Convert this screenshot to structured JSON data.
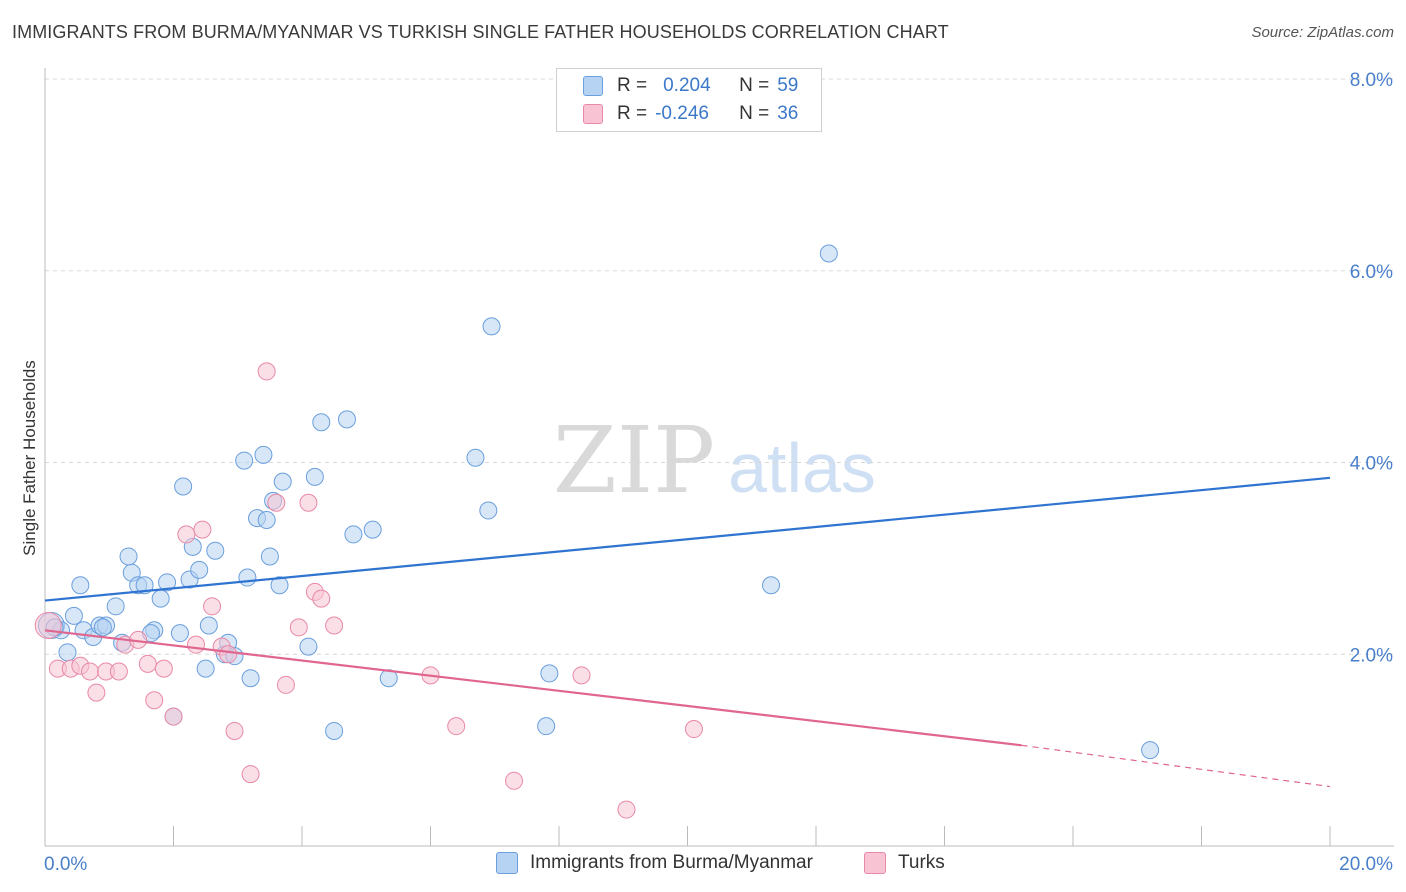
{
  "title": "IMMIGRANTS FROM BURMA/MYANMAR VS TURKISH SINGLE FATHER HOUSEHOLDS CORRELATION CHART",
  "source": "Source: ZipAtlas.com",
  "watermark": {
    "zip": "ZIP",
    "atlas": "atlas"
  },
  "legend": {
    "r_label": "R =",
    "n_label": "N =",
    "series": [
      {
        "r": "0.204",
        "n": "59"
      },
      {
        "r": "-0.246",
        "n": "36"
      }
    ]
  },
  "bottom_legend": [
    "Immigrants from Burma/Myanmar",
    "Turks"
  ],
  "colors": {
    "blue_fill": "#b7d3f3",
    "blue_edge": "#6a9fdc",
    "blue_line": "#2f74d0",
    "pink_fill": "#f8c4d4",
    "pink_edge": "#e889a7",
    "pink_line": "#e0668f",
    "tick_label": "#4a80c9",
    "grid": "#d8d8d8"
  },
  "chart_data": {
    "type": "scatter",
    "title": "IMMIGRANTS FROM BURMA/MYANMAR VS TURKISH SINGLE FATHER HOUSEHOLDS CORRELATION CHART",
    "xlabel": "",
    "ylabel": "Single Father Households",
    "xlim": [
      0,
      20
    ],
    "ylim": [
      0,
      8.0
    ],
    "x_tick_labels": [
      {
        "value": 0,
        "label": "0.0%"
      },
      {
        "value": 20,
        "label": "20.0%"
      }
    ],
    "y_tick_labels": [
      {
        "value": 2,
        "label": "2.0%"
      },
      {
        "value": 4,
        "label": "4.0%"
      },
      {
        "value": 6,
        "label": "6.0%"
      },
      {
        "value": 8,
        "label": "8.0%"
      }
    ],
    "series": [
      {
        "name": "Immigrants from Burma/Myanmar",
        "color": "blue",
        "points": [
          [
            0.1,
            2.3
          ],
          [
            0.25,
            2.25
          ],
          [
            0.35,
            2.02
          ],
          [
            0.45,
            2.4
          ],
          [
            0.55,
            2.72
          ],
          [
            0.6,
            2.25
          ],
          [
            0.75,
            2.18
          ],
          [
            0.85,
            2.3
          ],
          [
            0.95,
            2.3
          ],
          [
            1.1,
            2.5
          ],
          [
            1.2,
            2.12
          ],
          [
            1.3,
            3.02
          ],
          [
            1.35,
            2.85
          ],
          [
            1.45,
            2.72
          ],
          [
            1.55,
            2.72
          ],
          [
            1.7,
            2.25
          ],
          [
            1.8,
            2.58
          ],
          [
            1.9,
            2.75
          ],
          [
            2.0,
            1.35
          ],
          [
            2.1,
            2.22
          ],
          [
            2.15,
            3.75
          ],
          [
            2.25,
            2.78
          ],
          [
            2.3,
            3.12
          ],
          [
            2.4,
            2.88
          ],
          [
            2.5,
            1.85
          ],
          [
            2.55,
            2.3
          ],
          [
            2.65,
            3.08
          ],
          [
            2.8,
            2.0
          ],
          [
            2.85,
            2.12
          ],
          [
            3.1,
            4.02
          ],
          [
            3.15,
            2.8
          ],
          [
            3.2,
            1.75
          ],
          [
            3.3,
            3.42
          ],
          [
            3.4,
            4.08
          ],
          [
            3.45,
            3.4
          ],
          [
            3.5,
            3.02
          ],
          [
            3.55,
            3.6
          ],
          [
            3.65,
            2.72
          ],
          [
            3.7,
            3.8
          ],
          [
            4.1,
            2.08
          ],
          [
            4.2,
            3.85
          ],
          [
            4.3,
            4.42
          ],
          [
            4.5,
            1.2
          ],
          [
            4.7,
            4.45
          ],
          [
            4.8,
            3.25
          ],
          [
            5.1,
            3.3
          ],
          [
            5.35,
            1.75
          ],
          [
            6.7,
            4.05
          ],
          [
            6.9,
            3.5
          ],
          [
            6.95,
            5.42
          ],
          [
            7.8,
            1.25
          ],
          [
            7.85,
            1.8
          ],
          [
            11.3,
            2.72
          ],
          [
            12.2,
            6.18
          ],
          [
            17.2,
            1.0
          ],
          [
            0.15,
            2.28
          ],
          [
            1.65,
            2.22
          ],
          [
            2.95,
            1.98
          ],
          [
            0.9,
            2.28
          ]
        ],
        "trend": {
          "x": [
            0,
            20
          ],
          "y": [
            2.56,
            3.84
          ]
        }
      },
      {
        "name": "Turks",
        "color": "pink",
        "points": [
          [
            0.05,
            2.3
          ],
          [
            0.2,
            1.85
          ],
          [
            0.4,
            1.85
          ],
          [
            0.55,
            1.88
          ],
          [
            0.7,
            1.82
          ],
          [
            0.8,
            1.6
          ],
          [
            0.95,
            1.82
          ],
          [
            1.15,
            1.82
          ],
          [
            1.25,
            2.1
          ],
          [
            1.45,
            2.15
          ],
          [
            1.6,
            1.9
          ],
          [
            1.7,
            1.52
          ],
          [
            1.85,
            1.85
          ],
          [
            2.0,
            1.35
          ],
          [
            2.2,
            3.25
          ],
          [
            2.35,
            2.1
          ],
          [
            2.45,
            3.3
          ],
          [
            2.6,
            2.5
          ],
          [
            2.75,
            2.08
          ],
          [
            2.85,
            2.0
          ],
          [
            2.95,
            1.2
          ],
          [
            3.2,
            0.75
          ],
          [
            3.45,
            4.95
          ],
          [
            3.6,
            3.58
          ],
          [
            3.75,
            1.68
          ],
          [
            3.95,
            2.28
          ],
          [
            4.1,
            3.58
          ],
          [
            4.2,
            2.65
          ],
          [
            4.3,
            2.58
          ],
          [
            4.5,
            2.3
          ],
          [
            6.0,
            1.78
          ],
          [
            6.4,
            1.25
          ],
          [
            7.3,
            0.68
          ],
          [
            8.35,
            1.78
          ],
          [
            9.05,
            0.38
          ],
          [
            10.1,
            1.22
          ]
        ],
        "trend": {
          "x": [
            0,
            15.2
          ],
          "y": [
            2.25,
            1.05
          ]
        },
        "trend_dashed": {
          "x": [
            15.2,
            20
          ],
          "y": [
            1.05,
            0.62
          ]
        }
      }
    ]
  }
}
